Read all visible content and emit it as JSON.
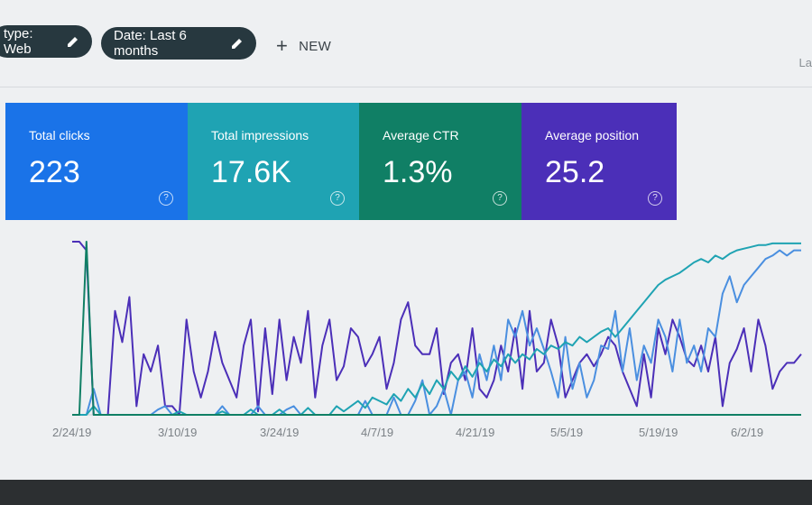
{
  "filters": {
    "type_chip": "type: Web",
    "date_chip": "Date: Last 6 months",
    "new_label": "NEW",
    "last_label": "La"
  },
  "metrics": [
    {
      "label": "Total clicks",
      "value": "223",
      "color": "#1a73e8"
    },
    {
      "label": "Total impressions",
      "value": "17.6K",
      "color": "#1fa3b3"
    },
    {
      "label": "Average CTR",
      "value": "1.3%",
      "color": "#107f65"
    },
    {
      "label": "Average position",
      "value": "25.2",
      "color": "#4b2fb8"
    }
  ],
  "help_glyph": "?",
  "icons": {
    "edit": "pencil-icon",
    "add": "plus-icon",
    "help": "help-circle-icon"
  },
  "chart_data": {
    "type": "line",
    "x_labels": [
      "2/24/19",
      "3/10/19",
      "3/24/19",
      "4/7/19",
      "4/21/19",
      "5/5/19",
      "5/19/19",
      "6/2/19"
    ],
    "series": [
      {
        "color": "#4b2fb8",
        "values": [
          100,
          100,
          95,
          0,
          0,
          0,
          60,
          42,
          68,
          5,
          35,
          25,
          40,
          5,
          5,
          0,
          55,
          25,
          10,
          25,
          48,
          30,
          20,
          10,
          40,
          55,
          2,
          50,
          12,
          55,
          20,
          45,
          30,
          60,
          10,
          40,
          55,
          20,
          28,
          50,
          45,
          28,
          35,
          45,
          15,
          30,
          55,
          65,
          40,
          35,
          35,
          50,
          12,
          30,
          35,
          20,
          50,
          15,
          10,
          20,
          40,
          25,
          50,
          15,
          60,
          25,
          30,
          55,
          40,
          10,
          20,
          30,
          35,
          28,
          35,
          45,
          40,
          25,
          15,
          5,
          35,
          10,
          50,
          35,
          55,
          45,
          32,
          28,
          40,
          25,
          45,
          5,
          30,
          38,
          50,
          25,
          55,
          40,
          15,
          25,
          30,
          30,
          35
        ]
      },
      {
        "color": "#4a8fe0",
        "values": [
          0,
          0,
          0,
          15,
          0,
          0,
          0,
          0,
          0,
          0,
          0,
          0,
          3,
          5,
          0,
          0,
          0,
          0,
          0,
          0,
          0,
          5,
          0,
          0,
          0,
          0,
          5,
          0,
          0,
          0,
          3,
          5,
          0,
          0,
          0,
          0,
          0,
          0,
          0,
          0,
          0,
          8,
          0,
          0,
          0,
          10,
          0,
          0,
          8,
          20,
          0,
          5,
          15,
          0,
          20,
          25,
          10,
          35,
          20,
          40,
          20,
          55,
          45,
          60,
          40,
          50,
          38,
          25,
          10,
          45,
          15,
          30,
          10,
          20,
          40,
          38,
          60,
          25,
          50,
          20,
          40,
          30,
          55,
          45,
          25,
          55,
          30,
          40,
          25,
          50,
          45,
          70,
          80,
          65,
          75,
          80,
          85,
          90,
          92,
          95,
          92,
          95,
          95
        ]
      },
      {
        "color": "#1fa3b3",
        "values": [
          0,
          0,
          0,
          5,
          0,
          0,
          0,
          0,
          0,
          0,
          0,
          0,
          0,
          0,
          0,
          2,
          0,
          0,
          0,
          0,
          0,
          2,
          0,
          0,
          0,
          3,
          0,
          0,
          0,
          3,
          0,
          0,
          0,
          4,
          0,
          0,
          0,
          5,
          2,
          5,
          8,
          4,
          10,
          8,
          6,
          12,
          8,
          15,
          10,
          18,
          12,
          20,
          15,
          25,
          20,
          28,
          22,
          30,
          25,
          32,
          28,
          35,
          30,
          35,
          32,
          38,
          35,
          40,
          38,
          42,
          40,
          45,
          42,
          45,
          48,
          50,
          45,
          50,
          55,
          60,
          65,
          70,
          75,
          78,
          80,
          82,
          85,
          88,
          90,
          88,
          92,
          90,
          93,
          95,
          96,
          97,
          98,
          98,
          99,
          99,
          99,
          99,
          99
        ]
      },
      {
        "color": "#107f65",
        "values": [
          0,
          0,
          100,
          0,
          0,
          0,
          0,
          0,
          0,
          0,
          0,
          0,
          0,
          0,
          0,
          0,
          0,
          0,
          0,
          0,
          0,
          0,
          0,
          0,
          0,
          0,
          0,
          0,
          0,
          0,
          0,
          0,
          0,
          0,
          0,
          0,
          0,
          0,
          0,
          0,
          0,
          0,
          0,
          0,
          0,
          0,
          0,
          0,
          0,
          0,
          0,
          0,
          0,
          0,
          0,
          0,
          0,
          0,
          0,
          0,
          0,
          0,
          0,
          0,
          0,
          0,
          0,
          0,
          0,
          0,
          0,
          0,
          0,
          0,
          0,
          0,
          0,
          0,
          0,
          0,
          0,
          0,
          0,
          0,
          0,
          0,
          0,
          0,
          0,
          0,
          0,
          0,
          0,
          0,
          0,
          0,
          0,
          0,
          0,
          0,
          0,
          0,
          0
        ]
      }
    ],
    "grid": false
  }
}
